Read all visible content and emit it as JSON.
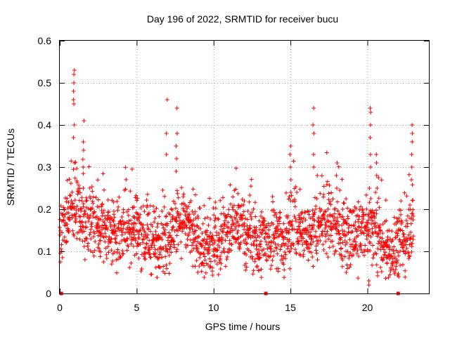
{
  "chart_data": {
    "type": "scatter",
    "title": "Day 196 of 2022, SRMTID for receiver bucu",
    "xlabel": "GPS time / hours",
    "ylabel": "SRMTID / TECUs",
    "xlim": [
      0,
      24
    ],
    "ylim": [
      0,
      0.6
    ],
    "x_ticks": [
      0,
      5,
      10,
      15,
      20
    ],
    "x_tick_labels": [
      "0",
      "5",
      "10",
      "15",
      "20"
    ],
    "y_ticks": [
      0,
      0.1,
      0.2,
      0.3,
      0.4,
      0.5,
      0.6
    ],
    "y_tick_labels": [
      "0",
      "0.1",
      "0.2",
      "0.3",
      "0.4",
      "0.5",
      "0.6"
    ],
    "grid": true,
    "marker": "plus",
    "color": "#ff0000",
    "series_name": "SRMTID",
    "trend": {
      "x": [
        0,
        0.3,
        0.9,
        1.5,
        2.0,
        2.8,
        3.5,
        4.3,
        5.0,
        5.6,
        6.5,
        7.2,
        8.0,
        9.0,
        10.0,
        10.8,
        11.6,
        12.5,
        13.2,
        14.0,
        14.6,
        15.2,
        15.8,
        16.6,
        17.3,
        18.0,
        18.8,
        19.5,
        20.2,
        20.8,
        21.5,
        22.2,
        22.9
      ],
      "y": [
        0.12,
        0.16,
        0.2,
        0.19,
        0.15,
        0.16,
        0.14,
        0.16,
        0.15,
        0.13,
        0.12,
        0.14,
        0.18,
        0.12,
        0.11,
        0.15,
        0.16,
        0.13,
        0.12,
        0.14,
        0.11,
        0.17,
        0.14,
        0.15,
        0.18,
        0.15,
        0.14,
        0.13,
        0.16,
        0.12,
        0.1,
        0.12,
        0.16
      ]
    },
    "spikes": [
      {
        "x": 0.92,
        "values": [
          0.53,
          0.52,
          0.5,
          0.48,
          0.46,
          0.45,
          0.4,
          0.37,
          0.31
        ]
      },
      {
        "x": 1.55,
        "values": [
          0.41,
          0.36,
          0.34,
          0.3,
          0.25
        ]
      },
      {
        "x": 6.95,
        "values": [
          0.46,
          0.38,
          0.33
        ]
      },
      {
        "x": 7.6,
        "values": [
          0.44,
          0.38,
          0.35,
          0.32,
          0.29
        ]
      },
      {
        "x": 15.0,
        "values": [
          0.35,
          0.33,
          0.3,
          0.27,
          0.24
        ]
      },
      {
        "x": 16.5,
        "values": [
          0.44
        ]
      },
      {
        "x": 16.5,
        "values": [
          0.4,
          0.38,
          0.33,
          0.3
        ]
      },
      {
        "x": 18.0,
        "values": [
          0.31,
          0.28,
          0.25
        ]
      },
      {
        "x": 20.2,
        "values": [
          0.44,
          0.43,
          0.4,
          0.37,
          0.33,
          0.3
        ]
      },
      {
        "x": 20.6,
        "values": [
          0.33,
          0.31,
          0.28,
          0.25
        ]
      },
      {
        "x": 22.9,
        "values": [
          0.4,
          0.38,
          0.36,
          0.33,
          0.3,
          0.27
        ]
      },
      {
        "x": 20.1,
        "values": [
          0.03,
          0.02
        ]
      }
    ],
    "zero_markers": [
      0.1,
      13.4,
      22.0
    ]
  }
}
